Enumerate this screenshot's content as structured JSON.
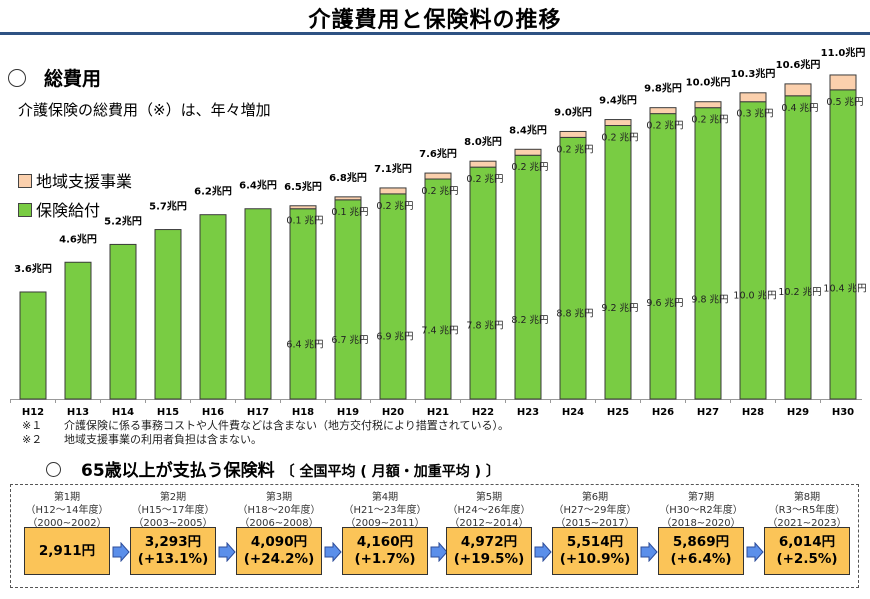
{
  "header": {
    "title": "介護費用と保険料の推移"
  },
  "section1": {
    "heading": "総費用",
    "subtitle": "介護保険の総費用（※）は、年々増加",
    "legend": [
      {
        "label": "地域支援事業",
        "color": "#fbd0ad"
      },
      {
        "label": "保険給付",
        "color": "#79cc43"
      }
    ]
  },
  "chart_data": {
    "type": "bar",
    "stacked": true,
    "title": "総費用",
    "xlabel": "",
    "ylabel": "",
    "unit": "兆円",
    "categories": [
      "H12",
      "H13",
      "H14",
      "H15",
      "H16",
      "H17",
      "H18",
      "H19",
      "H20",
      "H21",
      "H22",
      "H23",
      "H24",
      "H25",
      "H26",
      "H27",
      "H28",
      "H29",
      "H30"
    ],
    "series": [
      {
        "name": "保険給付",
        "color": "#79cc43",
        "values": [
          3.6,
          4.6,
          5.2,
          5.7,
          6.2,
          6.4,
          6.4,
          6.7,
          6.9,
          7.4,
          7.8,
          8.2,
          8.8,
          9.2,
          9.6,
          9.8,
          10.0,
          10.2,
          10.4
        ],
        "labels": [
          null,
          null,
          null,
          null,
          null,
          null,
          "6.4 兆円",
          "6.7 兆円",
          "6.9 兆円",
          "7.4 兆円",
          "7.8 兆円",
          "8.2 兆円",
          "8.8 兆円",
          "9.2 兆円",
          "9.6 兆円",
          "9.8 兆円",
          "10.0 兆円",
          "10.2 兆円",
          "10.4 兆円"
        ]
      },
      {
        "name": "地域支援事業",
        "color": "#fbd0ad",
        "values": [
          0,
          0,
          0,
          0,
          0,
          0,
          0.1,
          0.1,
          0.2,
          0.2,
          0.2,
          0.2,
          0.2,
          0.2,
          0.2,
          0.2,
          0.3,
          0.4,
          0.5
        ],
        "labels": [
          null,
          null,
          null,
          null,
          null,
          null,
          "0.1 兆円",
          "0.1 兆円",
          "0.2 兆円",
          "0.2 兆円",
          "0.2 兆円",
          "0.2 兆円",
          "0.2 兆円",
          "0.2 兆円",
          "0.2 兆円",
          "0.2 兆円",
          "0.3 兆円",
          "0.4 兆円",
          "0.5 兆円"
        ]
      }
    ],
    "totals": [
      3.6,
      4.6,
      5.2,
      5.7,
      6.2,
      6.4,
      6.5,
      6.8,
      7.1,
      7.6,
      8.0,
      8.4,
      9.0,
      9.4,
      9.8,
      10.0,
      10.3,
      10.6,
      11.0
    ],
    "total_labels": [
      "3.6兆円",
      "4.6兆円",
      "5.2兆円",
      "5.7兆円",
      "6.2兆円",
      "6.4兆円",
      "6.5兆円",
      "6.8兆円",
      "7.1兆円",
      "7.6兆円",
      "8.0兆円",
      "8.4兆円",
      "9.0兆円",
      "9.4兆円",
      "9.8兆円",
      "10.0兆円",
      "10.3兆円",
      "10.6兆円",
      "11.0兆円"
    ],
    "ylim": [
      0,
      11.0
    ],
    "grid": false,
    "legend": "top-left"
  },
  "notes": [
    {
      "mark": "※１",
      "text": "介護保険に係る事務コストや人件費などは含まない（地方交付税により措置されている）。"
    },
    {
      "mark": "※２",
      "text": "地域支援事業の利用者負担は含まない。"
    }
  ],
  "section2": {
    "heading": "65歳以上が支払う保険料",
    "sub": "〔 全国平均 ( 月額・加重平均 ) 〕",
    "periods": [
      {
        "name": "第1期",
        "era": "（H12～14年度）",
        "years": "（2000~2002）",
        "amount": "2,911円",
        "change": ""
      },
      {
        "name": "第2期",
        "era": "（H15～17年度）",
        "years": "（2003~2005）",
        "amount": "3,293円",
        "change": "(+13.1%)"
      },
      {
        "name": "第3期",
        "era": "（H18～20年度）",
        "years": "（2006~2008）",
        "amount": "4,090円",
        "change": "(+24.2%)"
      },
      {
        "name": "第4期",
        "era": "（H21～23年度）",
        "years": "（2009~2011）",
        "amount": "4,160円",
        "change": "(+1.7%)"
      },
      {
        "name": "第5期",
        "era": "（H24～26年度）",
        "years": "（2012~2014）",
        "amount": "4,972円",
        "change": "(+19.5%)"
      },
      {
        "name": "第6期",
        "era": "（H27～29年度）",
        "years": "（2015~2017）",
        "amount": "5,514円",
        "change": "(+10.9%)"
      },
      {
        "name": "第7期",
        "era": "（H30～R2年度）",
        "years": "（2018~2020）",
        "amount": "5,869円",
        "change": "(+6.4%)"
      },
      {
        "name": "第8期",
        "era": "（R3～R5年度）",
        "years": "（2021~2023）",
        "amount": "6,014円",
        "change": "(+2.5%)"
      }
    ]
  }
}
